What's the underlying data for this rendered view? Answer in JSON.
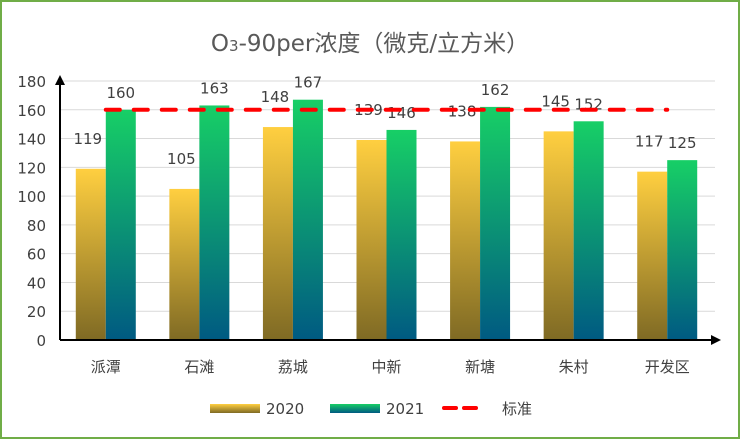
{
  "chart_data": {
    "type": "bar",
    "title_main": "O",
    "title_sub": "3",
    "title_rest": "-90per浓度（微克/立方米）",
    "categories": [
      "派潭",
      "石滩",
      "荔城",
      "中新",
      "新塘",
      "朱村",
      "开发区"
    ],
    "series": [
      {
        "name": "2020",
        "values": [
          119,
          105,
          148,
          139,
          138,
          145,
          117
        ],
        "color_top": "#ffcf40",
        "color_bottom": "#7f6a24"
      },
      {
        "name": "2021",
        "values": [
          160,
          163,
          167,
          146,
          162,
          152,
          125
        ],
        "color_top": "#17cf66",
        "color_bottom": "#005a82"
      }
    ],
    "reference_line": {
      "name": "标准",
      "value": 160,
      "color": "#ff0000"
    },
    "ylim": [
      0,
      180
    ],
    "yticks": [
      0,
      20,
      40,
      60,
      80,
      100,
      120,
      140,
      160,
      180
    ],
    "grid": true,
    "legend": "bottom"
  }
}
